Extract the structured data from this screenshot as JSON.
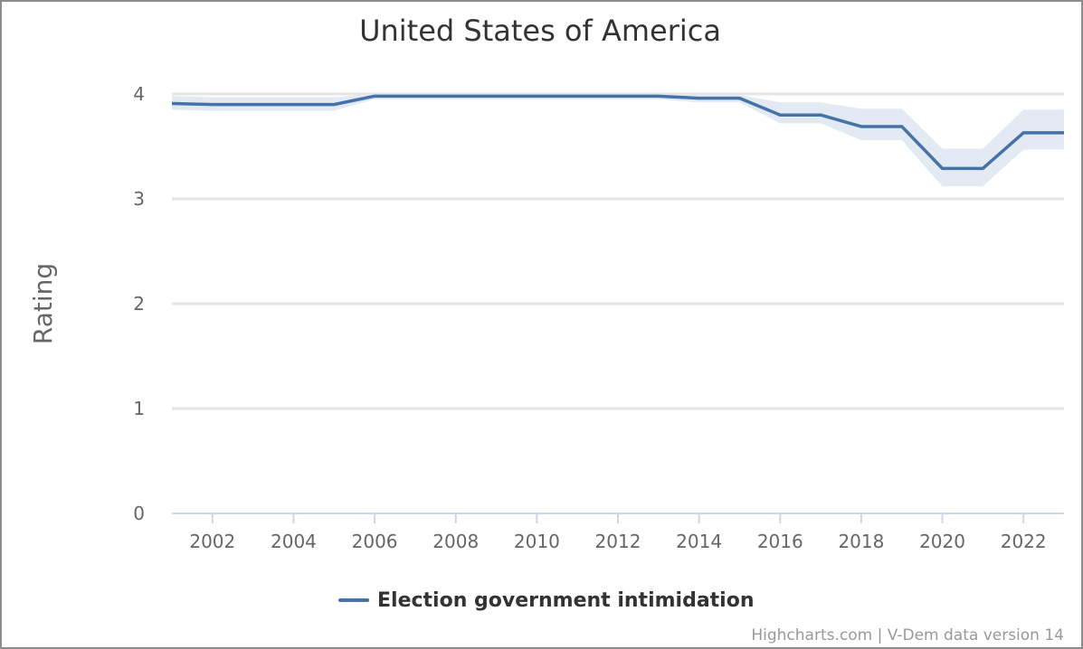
{
  "chart_data": {
    "type": "line",
    "title": "United States of America",
    "ylabel": "Rating",
    "xlabel": "",
    "x": [
      2001,
      2002,
      2003,
      2004,
      2005,
      2006,
      2007,
      2008,
      2009,
      2010,
      2011,
      2012,
      2013,
      2014,
      2015,
      2016,
      2017,
      2018,
      2019,
      2020,
      2021,
      2022,
      2023
    ],
    "xlim": [
      2001,
      2023
    ],
    "ylim": [
      0,
      4.4
    ],
    "x_ticks": [
      2002,
      2004,
      2006,
      2008,
      2010,
      2012,
      2014,
      2016,
      2018,
      2020,
      2022
    ],
    "y_ticks": [
      0,
      1,
      2,
      3,
      4
    ],
    "grid": true,
    "legend_position": "bottom",
    "series": [
      {
        "name": "Election government intimidation",
        "color": "#4572a7",
        "values": [
          3.91,
          3.9,
          3.9,
          3.9,
          3.9,
          3.98,
          3.98,
          3.98,
          3.98,
          3.98,
          3.98,
          3.98,
          3.98,
          3.96,
          3.96,
          3.8,
          3.8,
          3.69,
          3.69,
          3.29,
          3.29,
          3.63,
          3.63
        ],
        "upper": [
          3.98,
          3.97,
          3.97,
          3.97,
          3.97,
          4.0,
          4.0,
          4.0,
          4.0,
          4.0,
          4.0,
          4.0,
          4.0,
          3.99,
          3.99,
          3.92,
          3.92,
          3.86,
          3.86,
          3.48,
          3.48,
          3.85,
          3.85
        ],
        "lower": [
          3.85,
          3.84,
          3.84,
          3.84,
          3.84,
          3.95,
          3.95,
          3.95,
          3.95,
          3.95,
          3.95,
          3.95,
          3.95,
          3.92,
          3.92,
          3.72,
          3.72,
          3.56,
          3.56,
          3.12,
          3.12,
          3.47,
          3.47
        ],
        "band_color": "#e3eaf3"
      }
    ],
    "credits": "Highcharts.com | V-Dem data version 14"
  }
}
